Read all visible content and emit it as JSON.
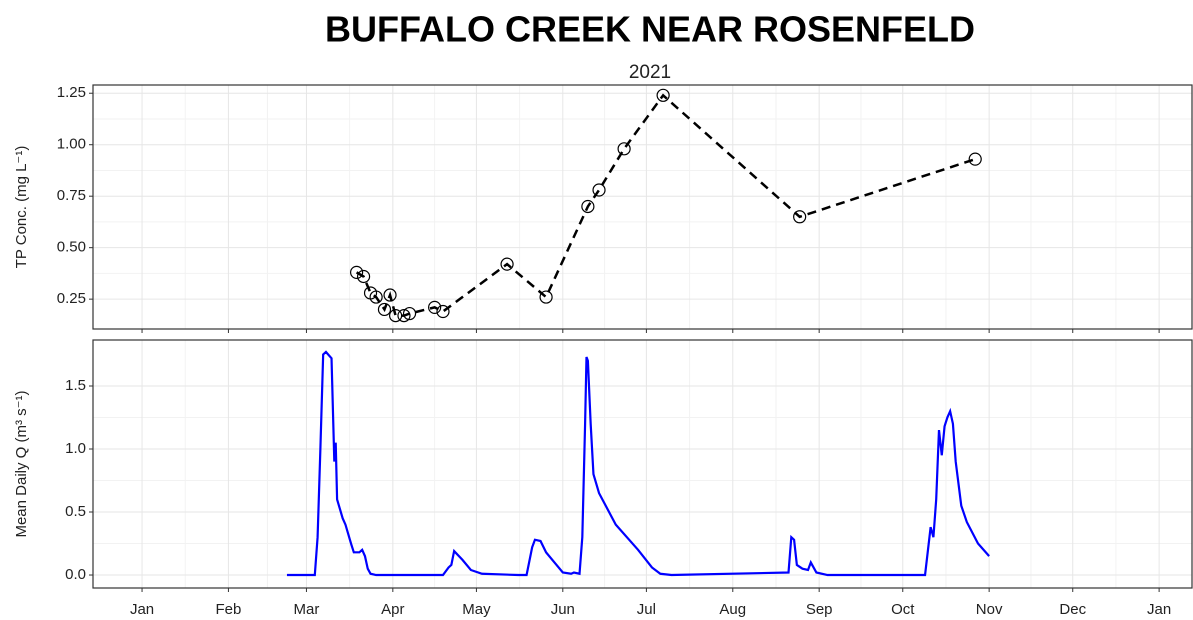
{
  "chart_data": [
    {
      "type": "line",
      "title": "BUFFALO CREEK NEAR ROSENFELD",
      "subtitle": "2021",
      "ylabel": "TP Conc. (mg L⁻¹)",
      "x": [
        77,
        79.5,
        82,
        84,
        87,
        89,
        91,
        94,
        96,
        105,
        108,
        131,
        145,
        160,
        164,
        173,
        187,
        236,
        299
      ],
      "series": [
        {
          "name": "TP",
          "color": "#000000",
          "line_style": "dashed",
          "marker": "circle",
          "values": [
            0.38,
            0.36,
            0.28,
            0.26,
            0.2,
            0.27,
            0.17,
            0.17,
            0.18,
            0.21,
            0.19,
            0.42,
            0.26,
            0.7,
            0.78,
            0.98,
            1.24,
            0.65,
            0.93
          ]
        }
      ],
      "xlim": [
        -17.6,
        376.8
      ],
      "xticks": [
        {
          "value": 0,
          "label": "Jan"
        },
        {
          "value": 31,
          "label": "Feb"
        },
        {
          "value": 59,
          "label": "Mar"
        },
        {
          "value": 90,
          "label": "Apr"
        },
        {
          "value": 120,
          "label": "May"
        },
        {
          "value": 151,
          "label": "Jun"
        },
        {
          "value": 181,
          "label": "Jul"
        },
        {
          "value": 212,
          "label": "Aug"
        },
        {
          "value": 243,
          "label": "Sep"
        },
        {
          "value": 273,
          "label": "Oct"
        },
        {
          "value": 304,
          "label": "Nov"
        },
        {
          "value": 334,
          "label": "Dec"
        },
        {
          "value": 365,
          "label": "Jan"
        }
      ],
      "ylim": [
        0.105,
        1.29
      ],
      "yticks": [
        0.25,
        {
          "value": 0.5,
          "label": "0.50"
        },
        0.75,
        {
          "value": 1,
          "label": "1.00"
        },
        1.25
      ],
      "grid": true
    },
    {
      "type": "line",
      "ylabel": "Mean Daily Q (m³ s⁻¹)",
      "x": [
        52,
        62,
        63,
        64,
        65,
        66,
        68,
        69,
        69.5,
        70,
        72,
        73,
        75,
        76,
        78,
        79,
        80,
        81,
        82,
        84,
        108,
        110,
        111,
        112,
        115,
        118,
        122,
        135,
        138,
        140,
        141,
        143,
        145,
        148,
        151,
        154,
        155,
        157,
        158,
        159,
        159.5,
        160,
        161,
        162,
        164,
        170,
        178,
        183,
        186,
        190,
        232,
        233,
        234,
        235,
        237,
        239,
        240,
        242,
        246,
        281,
        283,
        284,
        285,
        286,
        287,
        288,
        289,
        290,
        291,
        292,
        294,
        296,
        300,
        304
      ],
      "series": [
        {
          "name": "Q",
          "color": "#0000ff",
          "values": [
            0,
            0,
            0.3,
            1.0,
            1.75,
            1.77,
            1.72,
            0.9,
            1.05,
            0.6,
            0.45,
            0.4,
            0.25,
            0.18,
            0.18,
            0.2,
            0.15,
            0.05,
            0.01,
            0,
            0,
            0.06,
            0.08,
            0.19,
            0.12,
            0.04,
            0.01,
            0,
            0,
            0.22,
            0.28,
            0.27,
            0.18,
            0.1,
            0.02,
            0.01,
            0.02,
            0.01,
            0.3,
            1.2,
            1.73,
            1.7,
            1.2,
            0.8,
            0.65,
            0.4,
            0.2,
            0.06,
            0.01,
            0,
            0.02,
            0.3,
            0.28,
            0.08,
            0.05,
            0.04,
            0.1,
            0.02,
            0,
            0,
            0.38,
            0.3,
            0.6,
            1.15,
            0.95,
            1.18,
            1.25,
            1.3,
            1.2,
            0.9,
            0.55,
            0.42,
            0.25,
            0.15
          ]
        }
      ],
      "xlim": [
        -17.6,
        376.8
      ],
      "xticks": [
        {
          "value": 0,
          "label": "Jan"
        },
        {
          "value": 31,
          "label": "Feb"
        },
        {
          "value": 59,
          "label": "Mar"
        },
        {
          "value": 90,
          "label": "Apr"
        },
        {
          "value": 120,
          "label": "May"
        },
        {
          "value": 151,
          "label": "Jun"
        },
        {
          "value": 181,
          "label": "Jul"
        },
        {
          "value": 212,
          "label": "Aug"
        },
        {
          "value": 243,
          "label": "Sep"
        },
        {
          "value": 273,
          "label": "Oct"
        },
        {
          "value": 304,
          "label": "Nov"
        },
        {
          "value": 334,
          "label": "Dec"
        },
        {
          "value": 365,
          "label": "Jan"
        }
      ],
      "ylim": [
        -0.103,
        1.865
      ],
      "yticks": [
        {
          "value": 0,
          "label": "0.0"
        },
        {
          "value": 0.5,
          "label": "0.5"
        },
        {
          "value": 1,
          "label": "1.0"
        },
        {
          "value": 1.5,
          "label": "1.5"
        }
      ],
      "grid": true
    }
  ]
}
